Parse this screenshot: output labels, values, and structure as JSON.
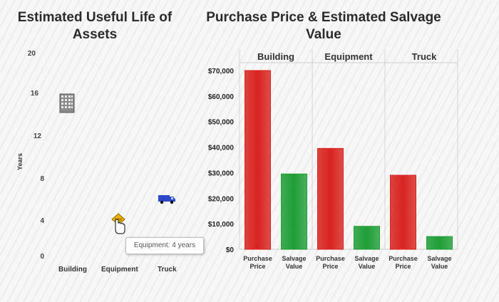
{
  "left_chart": {
    "title": "Estimated Useful Life of Assets",
    "ylabel": "Years",
    "yticks": [
      "20",
      "16",
      "12",
      "8",
      "4",
      "0"
    ],
    "categories": [
      "Building",
      "Equipment",
      "Truck"
    ],
    "tooltip": "Equipment: 4 years",
    "icons": [
      "building-icon",
      "hand-cursor-icon",
      "truck-icon"
    ]
  },
  "chart_data": {
    "type": "bar",
    "title": "Purchase Price & Estimated Salvage Value",
    "groups": [
      "Building",
      "Equipment",
      "Truck"
    ],
    "categories": [
      "Purchase Price",
      "Salvage Value",
      "Purchase Price",
      "Salvage Value",
      "Purchase Price",
      "Salvage Value"
    ],
    "category_lines": [
      [
        "Purchase",
        "Price"
      ],
      [
        "Salvage",
        "Value"
      ],
      [
        "Purchase",
        "Price"
      ],
      [
        "Salvage",
        "Value"
      ],
      [
        "Purchase",
        "Price"
      ],
      [
        "Salvage",
        "Value"
      ]
    ],
    "values": [
      70000,
      29500,
      39500,
      9000,
      29000,
      5000
    ],
    "colors": [
      "#d9231f",
      "#1f9e36",
      "#d9231f",
      "#1f9e36",
      "#d9231f",
      "#1f9e36"
    ],
    "ylim": [
      0,
      70000
    ],
    "yticks": [
      "$70,000",
      "$60,000",
      "$50,000",
      "$40,000",
      "$30,000",
      "$20,000",
      "$10,000",
      "$0"
    ],
    "ytick_values": [
      70000,
      60000,
      50000,
      40000,
      30000,
      20000,
      10000,
      0
    ],
    "xlabel": "",
    "ylabel": ""
  }
}
